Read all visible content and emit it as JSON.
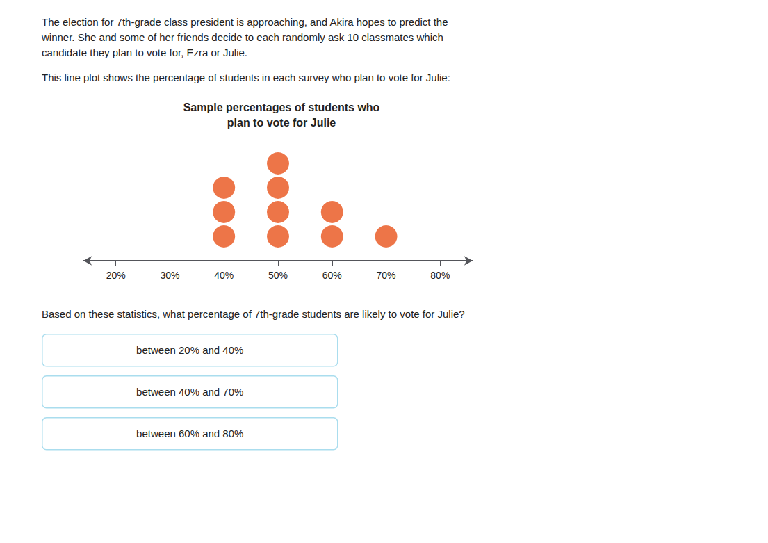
{
  "chart_data": {
    "type": "dot",
    "title": "Sample percentages of students who\nplan to vote for Julie",
    "x": [
      40,
      50,
      60,
      70
    ],
    "values": [
      3,
      4,
      2,
      1
    ],
    "color": "#e8521a",
    "xlim": [
      14,
      86
    ],
    "xticks": [
      {
        "value": 20,
        "label": "20%"
      },
      {
        "value": 30,
        "label": "30%"
      },
      {
        "value": 40,
        "label": "40%"
      },
      {
        "value": 50,
        "label": "50%"
      },
      {
        "value": 60,
        "label": "60%"
      },
      {
        "value": 70,
        "label": "70%"
      },
      {
        "value": 80,
        "label": "80%"
      }
    ],
    "ylim": [
      0,
      5
    ],
    "grid": false,
    "tick_labels": "x",
    "annotations": [
      "The election for 7th-grade class president is approaching, and Akira hopes to predict the\nwinner. She and some of her friends decide to each randomly ask 10 classmates which\ncandidate they plan to vote for, Ezra or Julie.",
      "This line plot shows the percentage of students in each survey who plan to vote for Julie:",
      "Based on these statistics, what percentage of 7th-grade students are likely to vote for Julie?",
      "between 20% and 40%",
      "between 40% and 70%",
      "between 60% and 80%"
    ]
  }
}
